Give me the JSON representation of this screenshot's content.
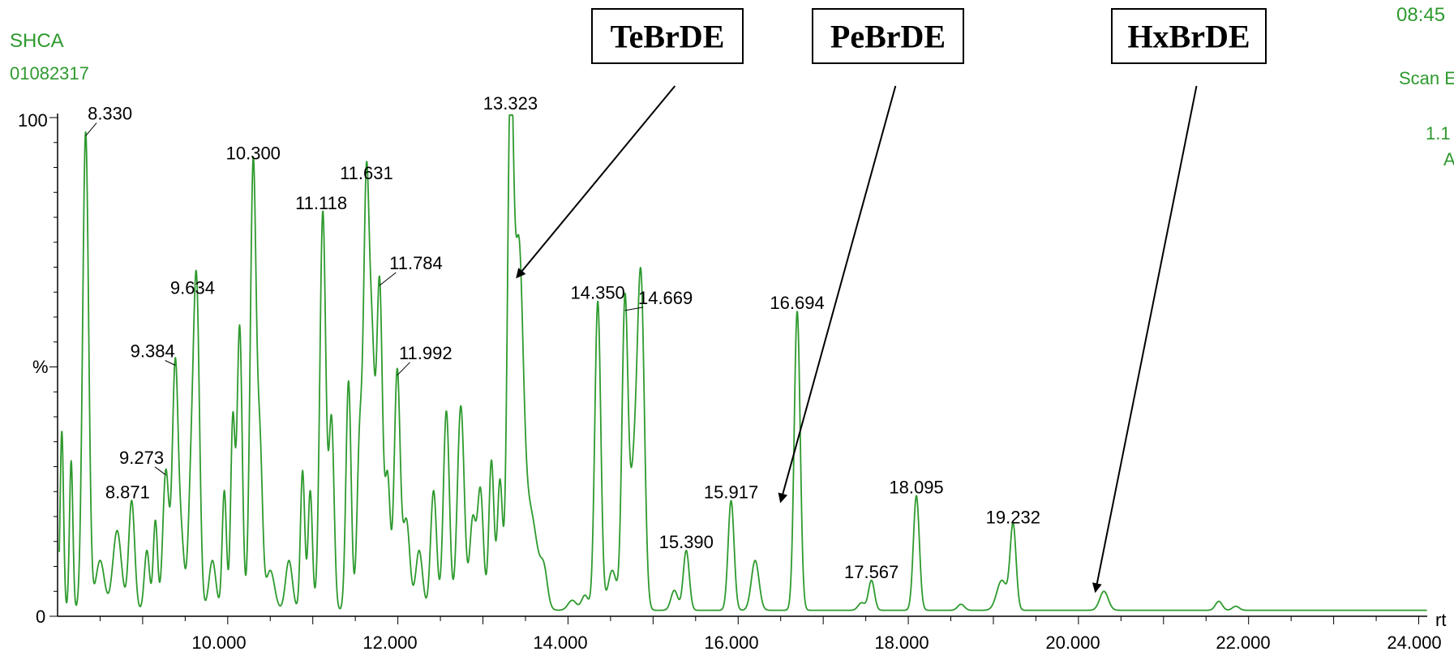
{
  "header": {
    "title": "SHCA",
    "sample_id": "01082317",
    "time_fragment": "08:45",
    "scan_fragment": "Scan E",
    "value_fragment": "1.1",
    "extra_fragment": "A"
  },
  "colors": {
    "trace": "#2e9a2e",
    "axis": "#000000",
    "text_green": "#2e9a2e"
  },
  "chart_data": {
    "type": "line",
    "xlabel": "rt",
    "ylabel": "%",
    "xlim": [
      8.0,
      24.1
    ],
    "ylim": [
      0,
      100
    ],
    "x_ticks": [
      "10.000",
      "12.000",
      "14.000",
      "16.000",
      "18.000",
      "20.000",
      "22.000",
      "24.000"
    ],
    "y_ticks": [
      "0",
      "100"
    ],
    "peaks": [
      {
        "rt": 8.33,
        "height": 96,
        "label": "8.330"
      },
      {
        "rt": 8.871,
        "height": 22,
        "label": "8.871"
      },
      {
        "rt": 9.273,
        "height": 28,
        "label": "9.273"
      },
      {
        "rt": 9.384,
        "height": 50,
        "label": "9.384"
      },
      {
        "rt": 9.634,
        "height": 63,
        "label": "9.634"
      },
      {
        "rt": 10.3,
        "height": 90,
        "label": "10.300"
      },
      {
        "rt": 11.118,
        "height": 80,
        "label": "11.118"
      },
      {
        "rt": 11.631,
        "height": 86,
        "label": "11.631"
      },
      {
        "rt": 11.784,
        "height": 66,
        "label": "11.784"
      },
      {
        "rt": 11.992,
        "height": 48,
        "label": "11.992"
      },
      {
        "rt": 13.323,
        "height": 100,
        "label": "13.323"
      },
      {
        "rt": 14.35,
        "height": 62,
        "label": "14.350"
      },
      {
        "rt": 14.669,
        "height": 61,
        "label": "14.669"
      },
      {
        "rt": 15.39,
        "height": 12,
        "label": "15.390"
      },
      {
        "rt": 15.917,
        "height": 22,
        "label": "15.917"
      },
      {
        "rt": 16.694,
        "height": 60,
        "label": "16.694"
      },
      {
        "rt": 17.567,
        "height": 6,
        "label": "17.567"
      },
      {
        "rt": 18.095,
        "height": 23,
        "label": "18.095"
      },
      {
        "rt": 19.232,
        "height": 17,
        "label": "19.232"
      }
    ],
    "annotations": [
      {
        "text": "TeBrDE",
        "target_rt": 13.4,
        "target_pct": 68
      },
      {
        "text": "PeBrDE",
        "target_rt": 16.5,
        "target_pct": 23
      },
      {
        "text": "HxBrDE",
        "target_rt": 20.2,
        "target_pct": 5
      }
    ]
  }
}
